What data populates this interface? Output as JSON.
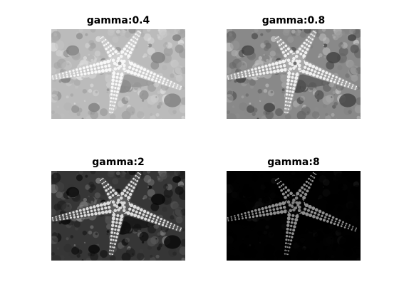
{
  "figure": {
    "panels": [
      {
        "title": "gamma:0.4",
        "gamma": 0.4
      },
      {
        "title": "gamma:0.8",
        "gamma": 0.8
      },
      {
        "title": "gamma:2",
        "gamma": 2
      },
      {
        "title": "gamma:8",
        "gamma": 8
      }
    ],
    "image_subject": "starfish",
    "image_colormap": "grayscale"
  }
}
